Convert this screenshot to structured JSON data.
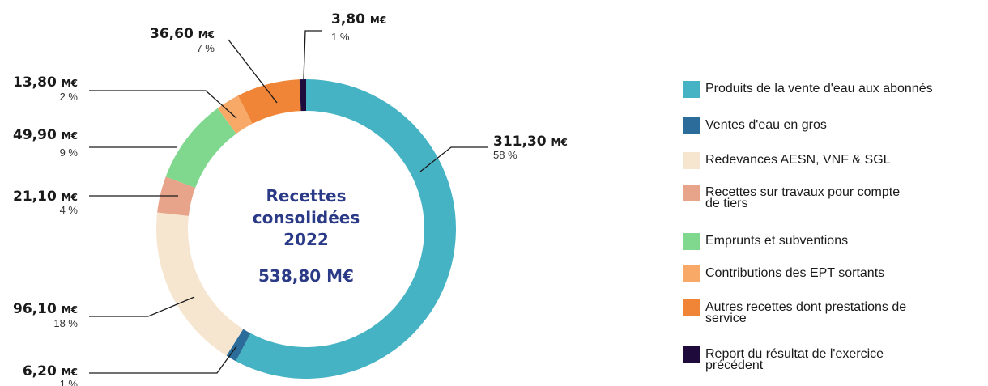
{
  "chart_data": {
    "type": "pie",
    "subtype": "donut",
    "center_title_lines": [
      "Recettes",
      "consolidées",
      "2022"
    ],
    "center_total": "538,80 M€",
    "unit": "M€",
    "legend_position": "right",
    "slices": [
      {
        "label": "Produits de la vente d'eau aux abonnés",
        "value": 311.3,
        "value_label": "311,30",
        "percent_label": "58 %",
        "color": "#45b3c4"
      },
      {
        "label": "Ventes d'eau en gros",
        "value": 6.2,
        "value_label": "6,20",
        "percent_label": "1 %",
        "color": "#2b6c9a"
      },
      {
        "label": "Redevances AESN, VNF & SGL",
        "value": 96.1,
        "value_label": "96,10",
        "percent_label": "18 %",
        "color": "#f6e5cf"
      },
      {
        "label": "Recettes sur travaux pour compte de tiers",
        "value": 21.1,
        "value_label": "21,10",
        "percent_label": "4 %",
        "color": "#e8a48b"
      },
      {
        "label": "Emprunts et subventions",
        "value": 49.9,
        "value_label": "49,90",
        "percent_label": "9 %",
        "color": "#7fd88e"
      },
      {
        "label": "Contributions des EPT sortants",
        "value": 13.8,
        "value_label": "13,80",
        "percent_label": "2 %",
        "color": "#f8a968"
      },
      {
        "label": "Autres recettes dont prestations de service",
        "value": 36.6,
        "value_label": "36,60",
        "percent_label": "7 %",
        "color": "#f08537"
      },
      {
        "label": "Report du résultat de l'exercice précédent",
        "value": 3.8,
        "value_label": "3,80",
        "percent_label": "1 %",
        "color": "#1e0b3c"
      }
    ]
  }
}
